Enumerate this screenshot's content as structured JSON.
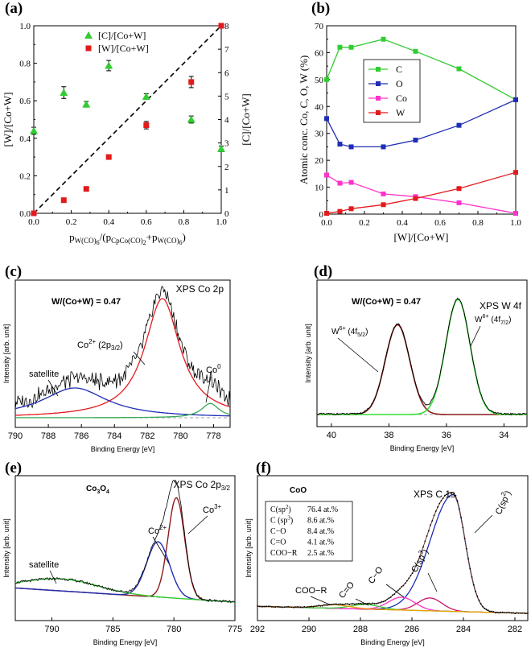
{
  "panels": {
    "a": {
      "label": "(a)"
    },
    "b": {
      "label": "(b)"
    },
    "c": {
      "label": "(c)"
    },
    "d": {
      "label": "(d)"
    },
    "e": {
      "label": "(e)"
    },
    "f": {
      "label": "(f)"
    }
  },
  "chart_data": [
    {
      "id": "a",
      "type": "scatter",
      "title": "",
      "xlabel": "pW(CO)6/(pCpCo(CO)2+pW(CO)6)",
      "ylabel": "[W]/[Co+W]",
      "ylabel2": "[C]/[Co+W]",
      "xlim": [
        0,
        1
      ],
      "ylim": [
        0,
        1
      ],
      "y2lim": [
        0,
        8
      ],
      "xticks": [
        "0.0",
        "0.2",
        "0.4",
        "0.6",
        "0.8",
        "1.0"
      ],
      "yticks": [
        "0.0",
        "0.2",
        "0.4",
        "0.6",
        "0.8",
        "1.0"
      ],
      "y2ticks": [
        "0",
        "1",
        "2",
        "3",
        "4",
        "5",
        "6",
        "7",
        "8"
      ],
      "series": [
        {
          "name": "[C]/[Co+W]",
          "axis": "right",
          "color": "#33cc33",
          "marker": "triangle",
          "x": [
            0.0,
            0.16,
            0.28,
            0.4,
            0.6,
            0.84,
            1.0
          ],
          "y": [
            3.52,
            5.15,
            4.65,
            6.3,
            4.98,
            4.0,
            2.75
          ],
          "err": [
            0.15,
            0.25,
            0.12,
            0.22,
            0.12,
            0.15,
            0.12
          ]
        },
        {
          "name": "[W]/[Co+W]",
          "axis": "left",
          "color": "#e31a1c",
          "marker": "square",
          "x": [
            0.0,
            0.16,
            0.28,
            0.4,
            0.6,
            0.84,
            1.0
          ],
          "y": [
            0.0,
            0.07,
            0.13,
            0.3,
            0.47,
            0.7,
            1.0
          ],
          "err": [
            0.0,
            0.01,
            0.01,
            0.01,
            0.02,
            0.03,
            0.0
          ]
        }
      ],
      "reference_line": {
        "style": "dashed",
        "from": [
          0,
          0
        ],
        "to": [
          1,
          1
        ]
      }
    },
    {
      "id": "b",
      "type": "line",
      "title": "",
      "xlabel": "[W]/[Co+W]",
      "ylabel": "Atomic conc. Co, C, O, W (%)",
      "xlim": [
        0,
        1
      ],
      "ylim": [
        0,
        70
      ],
      "xticks": [
        "0.0",
        "0.2",
        "0.4",
        "0.6",
        "0.8",
        "1.0"
      ],
      "yticks": [
        "0",
        "10",
        "20",
        "30",
        "40",
        "50",
        "60",
        "70"
      ],
      "series": [
        {
          "name": "C",
          "color": "#33cc33",
          "x": [
            0.0,
            0.07,
            0.13,
            0.3,
            0.47,
            0.7,
            1.0
          ],
          "y": [
            50,
            62,
            62,
            65,
            60.5,
            54,
            42.5
          ]
        },
        {
          "name": "O",
          "color": "#1f2db5",
          "x": [
            0.0,
            0.07,
            0.13,
            0.3,
            0.47,
            0.7,
            1.0
          ],
          "y": [
            35.5,
            26,
            25,
            25,
            27.5,
            33,
            42.5
          ]
        },
        {
          "name": "Co",
          "color": "#ff33cc",
          "x": [
            0.0,
            0.07,
            0.13,
            0.3,
            0.47,
            0.7,
            1.0
          ],
          "y": [
            14.5,
            11.5,
            11.8,
            7.5,
            6.5,
            4.2,
            0.3
          ]
        },
        {
          "name": "W",
          "color": "#e31a1c",
          "x": [
            0.0,
            0.07,
            0.13,
            0.3,
            0.47,
            0.7,
            1.0
          ],
          "y": [
            0.3,
            1.0,
            2.0,
            3.5,
            5.8,
            9.5,
            15.5
          ]
        }
      ]
    },
    {
      "id": "c",
      "type": "line",
      "title": "XPS Co 2p",
      "annotation": "W/(Co+W) = 0.47",
      "xlabel": "Binding Energy [eV]",
      "ylabel": "Intensity [arb. unit]",
      "xlim": [
        790,
        777
      ],
      "xticks": [
        "790",
        "788",
        "786",
        "784",
        "782",
        "780",
        "778"
      ],
      "peaks": [
        {
          "name": "Co2+ (2p3/2)",
          "label_main": "Co",
          "label_sup": "2+",
          "label_paren": " (2p",
          "label_sub": "3/2",
          "label_end": ")",
          "center": 781.1,
          "height": 1.0,
          "fwhm": 2.6,
          "color": "#e31a1c"
        },
        {
          "name": "satellite",
          "label_main": "satellite",
          "center": 786.4,
          "height": 0.25,
          "fwhm": 4.8,
          "color": "#1f2db5"
        },
        {
          "name": "Co0",
          "label_main": "Co",
          "label_sup": "0",
          "center": 778.2,
          "height": 0.12,
          "fwhm": 1.3,
          "color": "#33aa55"
        }
      ]
    },
    {
      "id": "d",
      "type": "line",
      "title": "XPS W 4f",
      "annotation": "W/(Co+W) = 0.47",
      "xlabel": "Binding Energy [eV]",
      "ylabel": "Intensity [arb. unit]",
      "xlim": [
        40.5,
        33.2
      ],
      "xticks": [
        "40",
        "38",
        "36",
        "34"
      ],
      "peaks": [
        {
          "name": "W6+ (4f5/2)",
          "label_main": "W",
          "label_sup": "6+",
          "label_paren": " (4f",
          "label_sub": "5/2",
          "label_end": ")",
          "center": 37.7,
          "height": 0.78,
          "fwhm": 1.0,
          "color": "#8b1a1a"
        },
        {
          "name": "W6+ (4f7/2)",
          "label_main": "W",
          "label_sup": "6+",
          "label_paren": " (4f",
          "label_sub": "7/2",
          "label_end": ")",
          "center": 35.6,
          "height": 1.0,
          "fwhm": 1.0,
          "color": "#33dd33"
        }
      ]
    },
    {
      "id": "e",
      "type": "line",
      "title": "XPS Co 2p3/2",
      "annotation": "Co3O4",
      "xlabel": "Binding Energy [eV]",
      "ylabel": "Intensity [arb. unit]",
      "xlim": [
        793,
        775
      ],
      "xticks": [
        "790",
        "785",
        "780",
        "775"
      ],
      "peaks": [
        {
          "name": "Co3+",
          "label_main": "Co",
          "label_sup": "3+",
          "center": 779.8,
          "height": 1.0,
          "fwhm": 1.6,
          "color": "#8b1a1a"
        },
        {
          "name": "Co2+",
          "label_main": "Co",
          "label_sup": "2+",
          "center": 781.3,
          "height": 0.55,
          "fwhm": 2.2,
          "color": "#1f2db5"
        },
        {
          "name": "satellite",
          "label_main": "satellite",
          "center": 789.2,
          "height": 0.12,
          "fwhm": 7.0,
          "color": "#33cc33"
        }
      ]
    },
    {
      "id": "f",
      "type": "line",
      "title": "XPS C 1s",
      "annotation": "CoO",
      "xlabel": "Binding Energy [eV]",
      "ylabel": "Intensity [arb. unit]",
      "xlim": [
        292,
        281.5
      ],
      "xticks": [
        "292",
        "290",
        "288",
        "286",
        "284",
        "282"
      ],
      "table": [
        {
          "component": "C(sp2)",
          "value": "76.4 at.%"
        },
        {
          "component": "C (sp3)",
          "value": "8.6 at.%"
        },
        {
          "component": "C−O",
          "value": "8.4 at.%"
        },
        {
          "component": "C=O",
          "value": "4.1 at.%"
        },
        {
          "component": "COO−R",
          "value": "2.5 at.%"
        }
      ],
      "peaks": [
        {
          "name": "C(sp2)",
          "label_main": "C(sp",
          "label_sup": "2",
          "label_end": ")",
          "center": 284.4,
          "height": 1.0,
          "fwhm": 1.1,
          "color": "#1f2db5"
        },
        {
          "name": "C(sp3)",
          "label_main": "C(sp",
          "label_sup": "3",
          "label_end": ")",
          "center": 285.3,
          "height": 0.11,
          "fwhm": 1.1,
          "color": "#cc1166"
        },
        {
          "name": "C−O",
          "label_main": "C−O",
          "center": 286.4,
          "height": 0.11,
          "fwhm": 1.2,
          "color": "#ff33cc"
        },
        {
          "name": "C=O",
          "label_main": "C=O",
          "center": 287.8,
          "height": 0.04,
          "fwhm": 1.3,
          "color": "#33cc33"
        },
        {
          "name": "COO−R",
          "label_main": "COO−R",
          "center": 289.0,
          "height": 0.03,
          "fwhm": 1.4,
          "color": "#e8a000"
        }
      ]
    }
  ]
}
